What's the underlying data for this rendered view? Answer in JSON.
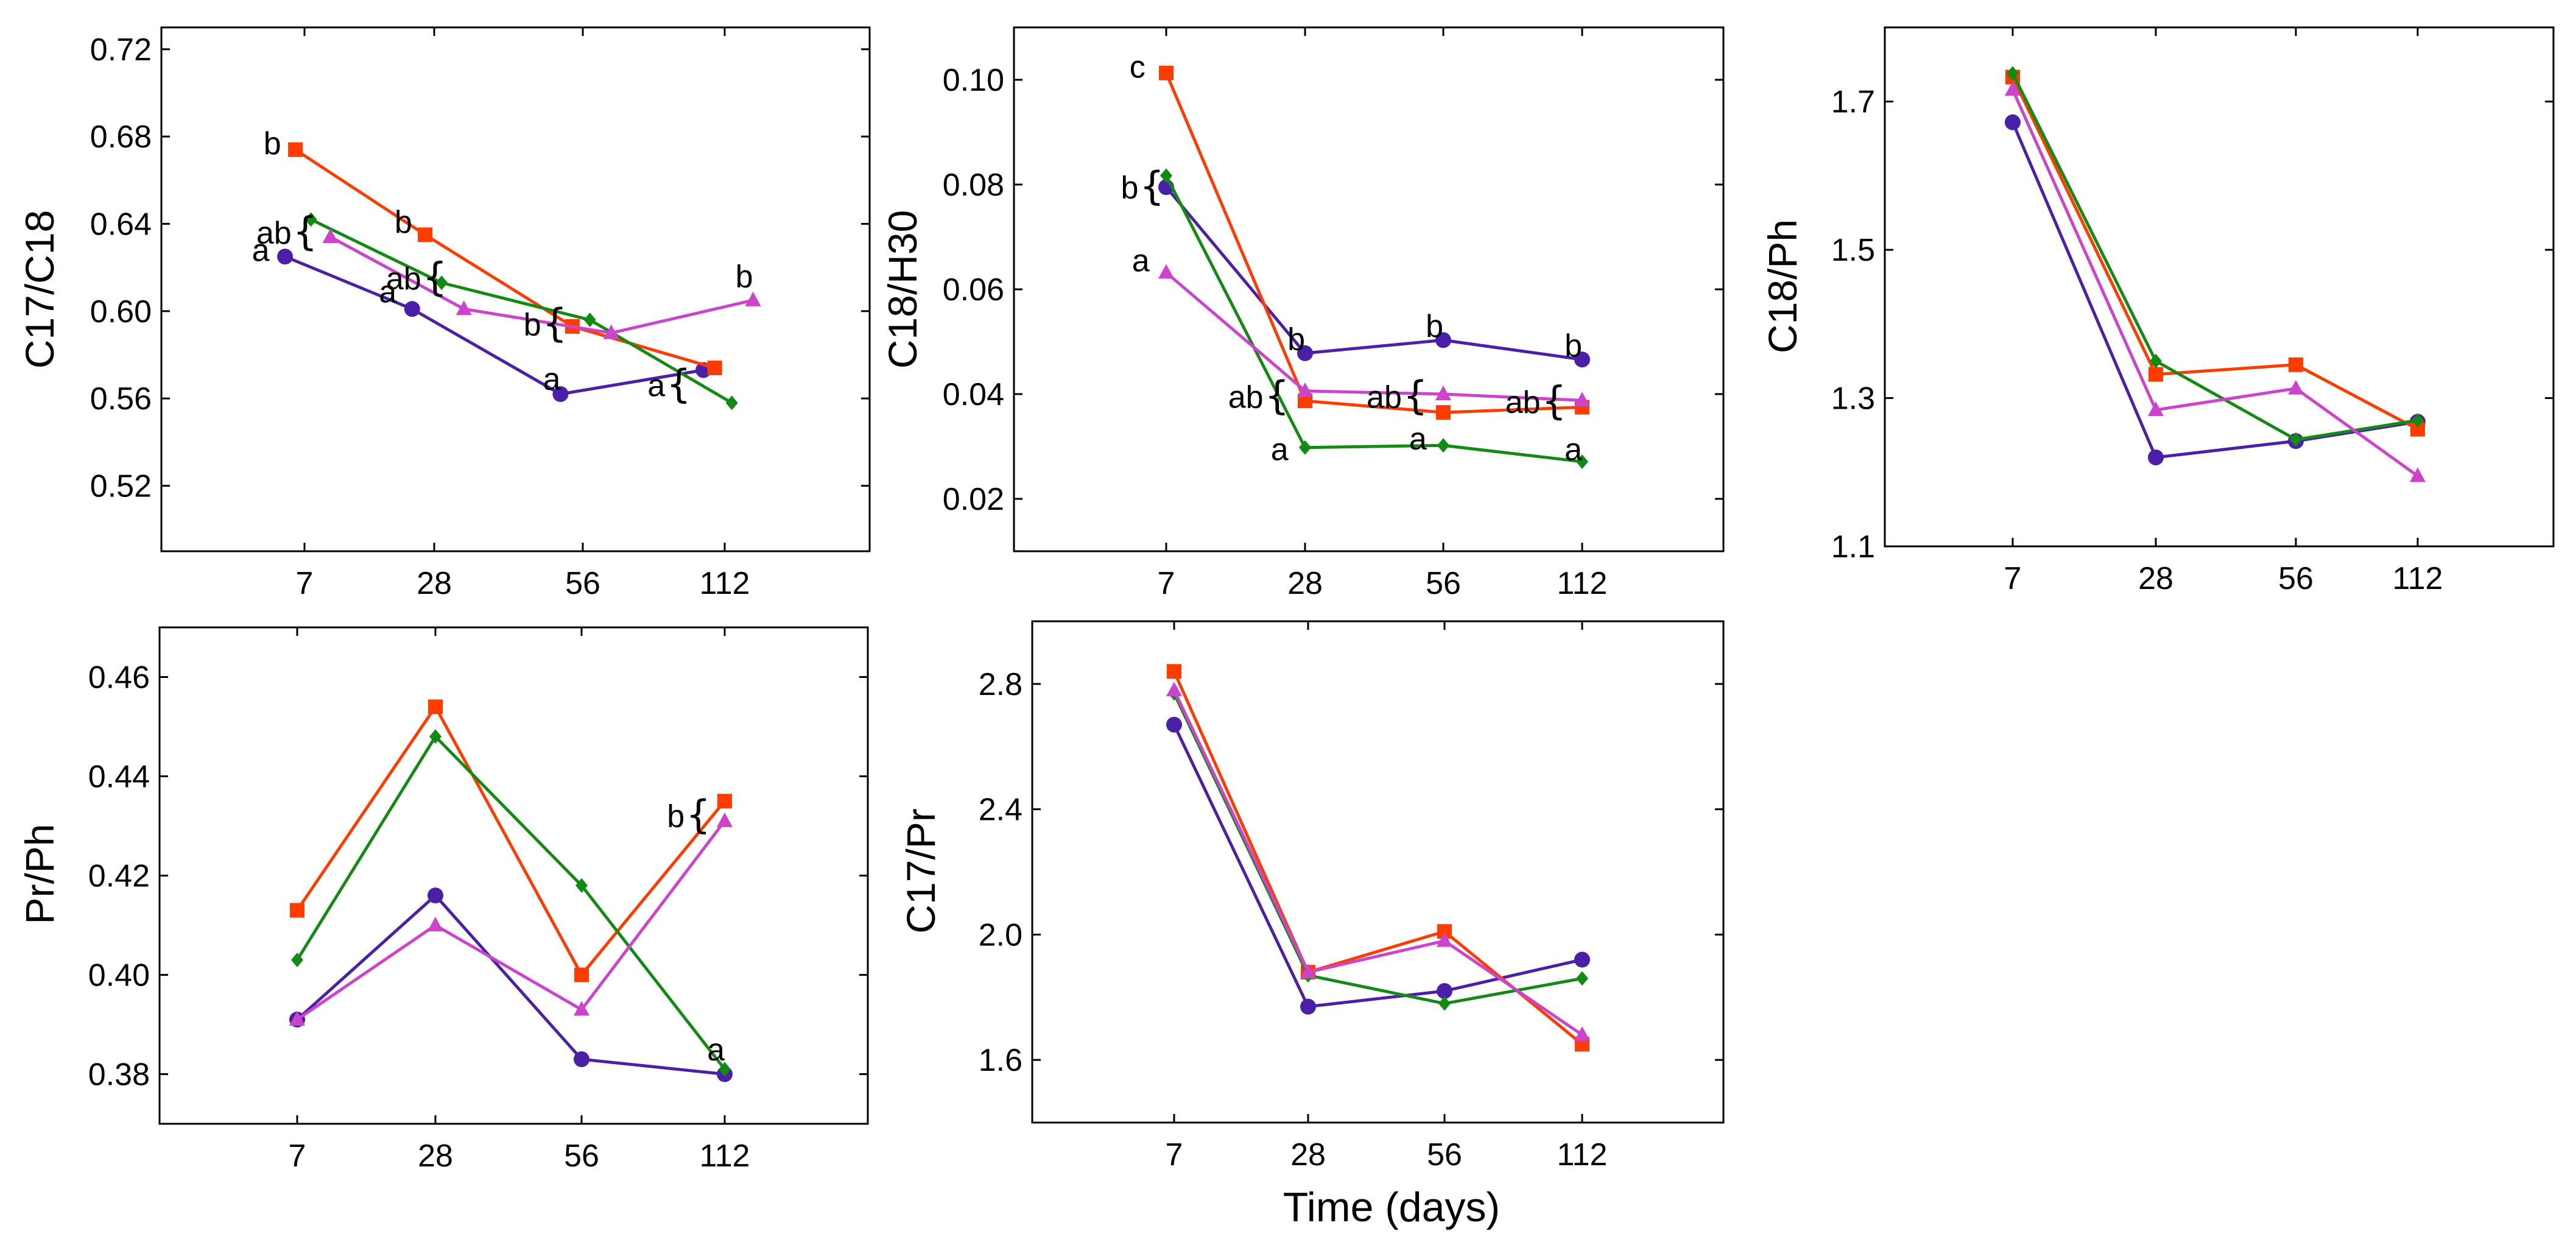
{
  "figure": {
    "xlabel": "Time (days)"
  },
  "series_colors": {
    "purple": "#4b1fa8",
    "red": "#ff3c00",
    "green": "#138a12",
    "magenta": "#cc44cc"
  },
  "series_markers": {
    "purple": "circle",
    "red": "square",
    "green": "diamond",
    "magenta": "triangle"
  },
  "chart_data": [
    {
      "type": "line",
      "ylabel": "C17/C18",
      "x_categories": [
        "7",
        "28",
        "56",
        "112"
      ],
      "ylim": [
        0.49,
        0.73
      ],
      "yticks": [
        "0.52",
        "0.56",
        "0.60",
        "0.64",
        "0.68",
        "0.72"
      ],
      "series": [
        {
          "name": "purple",
          "x": [
            0.85,
            1.83,
            2.85,
            3.85
          ],
          "values": [
            0.625,
            0.601,
            0.562,
            0.573
          ]
        },
        {
          "name": "red",
          "x": [
            0.93,
            1.93,
            2.93,
            3.93
          ],
          "values": [
            0.674,
            0.635,
            0.593,
            0.574
          ]
        },
        {
          "name": "green",
          "x": [
            1.05,
            2.05,
            3.05,
            4.05
          ],
          "values": [
            0.642,
            0.613,
            0.596,
            0.558
          ]
        },
        {
          "name": "magenta",
          "x": [
            1.2,
            2.2,
            3.2,
            4.2
          ],
          "values": [
            0.634,
            0.601,
            0.59,
            0.605
          ]
        }
      ],
      "annotations": [
        {
          "text": "a",
          "x": 0.73,
          "y": 0.628,
          "brace": false
        },
        {
          "text": "b",
          "x": 0.82,
          "y": 0.677,
          "brace": false
        },
        {
          "text": "ab",
          "x": 0.9,
          "y": 0.636,
          "brace": true
        },
        {
          "text": "a",
          "x": 1.71,
          "y": 0.609,
          "brace": false
        },
        {
          "text": "b",
          "x": 1.83,
          "y": 0.641,
          "brace": false
        },
        {
          "text": "ab",
          "x": 1.9,
          "y": 0.615,
          "brace": true
        },
        {
          "text": "a",
          "x": 2.85,
          "y": 0.569,
          "brace": false
        },
        {
          "text": "b",
          "x": 2.72,
          "y": 0.594,
          "brace": true
        },
        {
          "text": "a",
          "x": 3.58,
          "y": 0.566,
          "brace": true
        },
        {
          "text": "b",
          "x": 4.2,
          "y": 0.616,
          "brace": false
        }
      ]
    },
    {
      "type": "line",
      "ylabel": "C18/H30",
      "x_categories": [
        "7",
        "28",
        "56",
        "112"
      ],
      "ylim": [
        0.01,
        0.11
      ],
      "yticks": [
        "0.02",
        "0.04",
        "0.06",
        "0.08",
        "0.10"
      ],
      "series": [
        {
          "name": "purple",
          "x": [
            1,
            2,
            3,
            4
          ],
          "values": [
            0.0795,
            0.0478,
            0.0503,
            0.0466
          ]
        },
        {
          "name": "red",
          "x": [
            1,
            2,
            3,
            4
          ],
          "values": [
            0.1013,
            0.0387,
            0.0365,
            0.0375
          ]
        },
        {
          "name": "green",
          "x": [
            1,
            2,
            3,
            4
          ],
          "values": [
            0.0817,
            0.0298,
            0.0302,
            0.0271
          ]
        },
        {
          "name": "magenta",
          "x": [
            1,
            2,
            3,
            4
          ],
          "values": [
            0.0632,
            0.0406,
            0.04,
            0.0388
          ]
        }
      ],
      "annotations": [
        {
          "text": "c",
          "x": 0.85,
          "y": 0.1025,
          "brace": false
        },
        {
          "text": "b",
          "x": 0.8,
          "y": 0.0795,
          "brace": true
        },
        {
          "text": "a",
          "x": 0.88,
          "y": 0.0655,
          "brace": false
        },
        {
          "text": "b",
          "x": 2.0,
          "y": 0.0505,
          "brace": false
        },
        {
          "text": "ab",
          "x": 1.7,
          "y": 0.0395,
          "brace": true
        },
        {
          "text": "a",
          "x": 1.88,
          "y": 0.0295,
          "brace": false
        },
        {
          "text": "b",
          "x": 3.0,
          "y": 0.053,
          "brace": false
        },
        {
          "text": "ab",
          "x": 2.7,
          "y": 0.0395,
          "brace": true
        },
        {
          "text": "a",
          "x": 2.88,
          "y": 0.0315,
          "brace": false
        },
        {
          "text": "b",
          "x": 4.0,
          "y": 0.0493,
          "brace": false
        },
        {
          "text": "ab",
          "x": 3.7,
          "y": 0.0385,
          "brace": true
        },
        {
          "text": "a",
          "x": 4.0,
          "y": 0.0295,
          "brace": false
        }
      ]
    },
    {
      "type": "line",
      "ylabel": "C18/Ph",
      "x_categories": [
        "7",
        "28",
        "56",
        "112"
      ],
      "ylim": [
        1.1,
        1.8
      ],
      "yticks": [
        "1.1",
        "1.3",
        "1.5",
        "1.7"
      ],
      "series": [
        {
          "name": "purple",
          "x": [
            1,
            2,
            3,
            4
          ],
          "values": [
            1.672,
            1.22,
            1.242,
            1.268
          ]
        },
        {
          "name": "red",
          "x": [
            1,
            2,
            3,
            4
          ],
          "values": [
            1.733,
            1.332,
            1.345,
            1.258
          ]
        },
        {
          "name": "green",
          "x": [
            1,
            2,
            3,
            4
          ],
          "values": [
            1.738,
            1.35,
            1.244,
            1.27
          ]
        },
        {
          "name": "magenta",
          "x": [
            1,
            2,
            3,
            4
          ],
          "values": [
            1.716,
            1.284,
            1.313,
            1.195
          ]
        }
      ],
      "annotations": []
    },
    {
      "type": "line",
      "ylabel": "Pr/Ph",
      "x_categories": [
        "7",
        "28",
        "56",
        "112"
      ],
      "ylim": [
        0.37,
        0.47
      ],
      "yticks": [
        "0.38",
        "0.40",
        "0.42",
        "0.44",
        "0.46"
      ],
      "series": [
        {
          "name": "purple",
          "x": [
            1,
            2,
            3,
            4
          ],
          "values": [
            0.391,
            0.416,
            0.383,
            0.38
          ]
        },
        {
          "name": "red",
          "x": [
            1,
            2,
            3,
            4
          ],
          "values": [
            0.413,
            0.454,
            0.4,
            0.435
          ]
        },
        {
          "name": "green",
          "x": [
            1,
            2,
            3,
            4
          ],
          "values": [
            0.403,
            0.448,
            0.418,
            0.381
          ]
        },
        {
          "name": "magenta",
          "x": [
            1,
            2,
            3,
            4
          ],
          "values": [
            0.391,
            0.41,
            0.393,
            0.431
          ]
        }
      ],
      "annotations": [
        {
          "text": "b",
          "x": 3.72,
          "y": 0.432,
          "brace": true
        },
        {
          "text": "a",
          "x": 4.0,
          "y": 0.385,
          "brace": false
        }
      ]
    },
    {
      "type": "line",
      "ylabel": "C17/Pr",
      "x_categories": [
        "7",
        "28",
        "56",
        "112"
      ],
      "ylim": [
        1.4,
        3.0
      ],
      "yticks": [
        "1.6",
        "2.0",
        "2.4",
        "2.8"
      ],
      "series": [
        {
          "name": "purple",
          "x": [
            1,
            2,
            3,
            4
          ],
          "values": [
            2.67,
            1.77,
            1.82,
            1.92
          ]
        },
        {
          "name": "red",
          "x": [
            1,
            2,
            3,
            4
          ],
          "values": [
            2.84,
            1.88,
            2.01,
            1.65
          ]
        },
        {
          "name": "green",
          "x": [
            1,
            2,
            3,
            4
          ],
          "values": [
            2.77,
            1.87,
            1.78,
            1.86
          ]
        },
        {
          "name": "magenta",
          "x": [
            1,
            2,
            3,
            4
          ],
          "values": [
            2.78,
            1.88,
            1.98,
            1.68
          ]
        }
      ],
      "annotations": []
    }
  ]
}
